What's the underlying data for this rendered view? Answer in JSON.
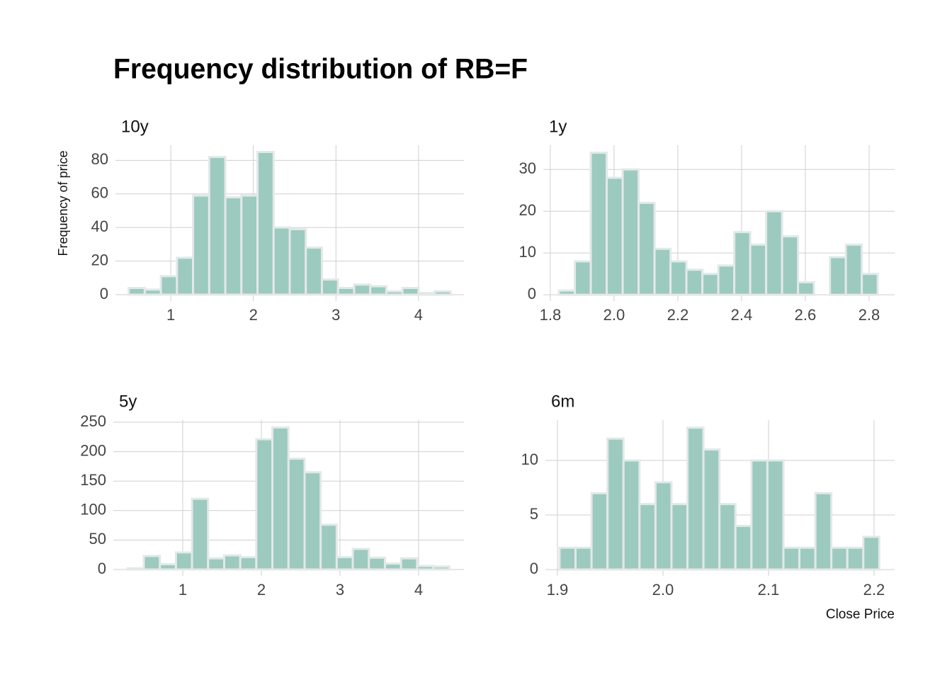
{
  "figure": {
    "title": "Frequency distribution of RB=F",
    "y_label": "Frequency of price",
    "x_label": "Close Price"
  },
  "chart_data": [
    {
      "type": "histogram",
      "title": "10y",
      "color": "#9ccabe",
      "edge_color": "#e4e8e8",
      "grid": true,
      "bins": [
        0.49,
        0.685,
        0.88,
        1.075,
        1.27,
        1.465,
        1.66,
        1.855,
        2.05,
        2.245,
        2.44,
        2.635,
        2.83,
        3.025,
        3.22,
        3.415,
        3.61,
        3.805,
        4.0,
        4.195,
        4.39
      ],
      "counts": [
        4,
        3,
        11,
        22,
        59,
        82,
        58,
        59,
        85,
        40,
        39,
        28,
        9,
        4,
        6,
        5,
        2,
        4,
        1,
        2
      ],
      "xlim": [
        0.33,
        4.55
      ],
      "ylim": [
        -3.8,
        89
      ],
      "xticks": [
        1,
        2,
        3,
        4
      ],
      "yticks": [
        0,
        20,
        40,
        60,
        80
      ]
    },
    {
      "type": "histogram",
      "title": "1y",
      "color": "#9ccabe",
      "edge_color": "#e4e8e8",
      "grid": true,
      "bins": [
        1.827,
        1.877,
        1.927,
        1.977,
        2.027,
        2.077,
        2.127,
        2.177,
        2.227,
        2.277,
        2.327,
        2.377,
        2.427,
        2.477,
        2.527,
        2.577,
        2.627,
        2.677,
        2.727,
        2.777,
        2.827
      ],
      "counts": [
        1,
        8,
        34,
        28,
        30,
        22,
        11,
        8,
        6,
        5,
        7,
        15,
        12,
        20,
        14,
        3,
        0,
        9,
        12,
        5
      ],
      "xlim": [
        1.778,
        2.88
      ],
      "ylim": [
        -1.5,
        35.8
      ],
      "xticks": [
        1.8,
        {
          "value": 2,
          "label": "2.0"
        },
        2.2,
        2.4,
        2.6,
        2.8
      ],
      "yticks": [
        0,
        10,
        20,
        30
      ]
    },
    {
      "type": "histogram",
      "title": "5y",
      "color": "#9ccabe",
      "edge_color": "#e4e8e8",
      "grid": true,
      "bins": [
        0.3,
        0.5045,
        0.709,
        0.9135,
        1.118,
        1.3225,
        1.527,
        1.7315,
        1.936,
        2.1405,
        2.345,
        2.5495,
        2.754,
        2.9585,
        3.163,
        3.3675,
        3.572,
        3.7765,
        3.981,
        4.1855,
        4.39
      ],
      "counts": [
        2,
        23,
        9,
        29,
        120,
        19,
        24,
        21,
        221,
        241,
        188,
        165,
        76,
        21,
        35,
        20,
        10,
        19,
        6,
        5
      ],
      "xlim": [
        0.117,
        4.577
      ],
      "ylim": [
        -10.8,
        253.6
      ],
      "xticks": [
        1,
        2,
        3,
        4
      ],
      "yticks": [
        0,
        50,
        100,
        150,
        200,
        250
      ]
    },
    {
      "type": "histogram",
      "title": "6m",
      "color": "#9ccabe",
      "edge_color": "#e4e8e8",
      "grid": true,
      "bins": [
        1.902,
        1.91715,
        1.9323,
        1.94745,
        1.9626,
        1.97775,
        1.9929,
        2.00805,
        2.0232,
        2.03835,
        2.0535,
        2.06865,
        2.0838,
        2.09895,
        2.1141,
        2.12925,
        2.1444,
        2.15955,
        2.1747,
        2.18985,
        2.205
      ],
      "counts": [
        2,
        2,
        7,
        12,
        10,
        6,
        8,
        6,
        13,
        11,
        6,
        4,
        10,
        10,
        2,
        2,
        7,
        2,
        2,
        3
      ],
      "xlim": [
        1.8886,
        2.2195
      ],
      "ylim": [
        -0.58,
        13.7
      ],
      "xticks": [
        1.9,
        {
          "value": 2,
          "label": "2.0"
        },
        2.1,
        2.2
      ],
      "yticks": [
        0,
        5,
        10
      ]
    }
  ]
}
